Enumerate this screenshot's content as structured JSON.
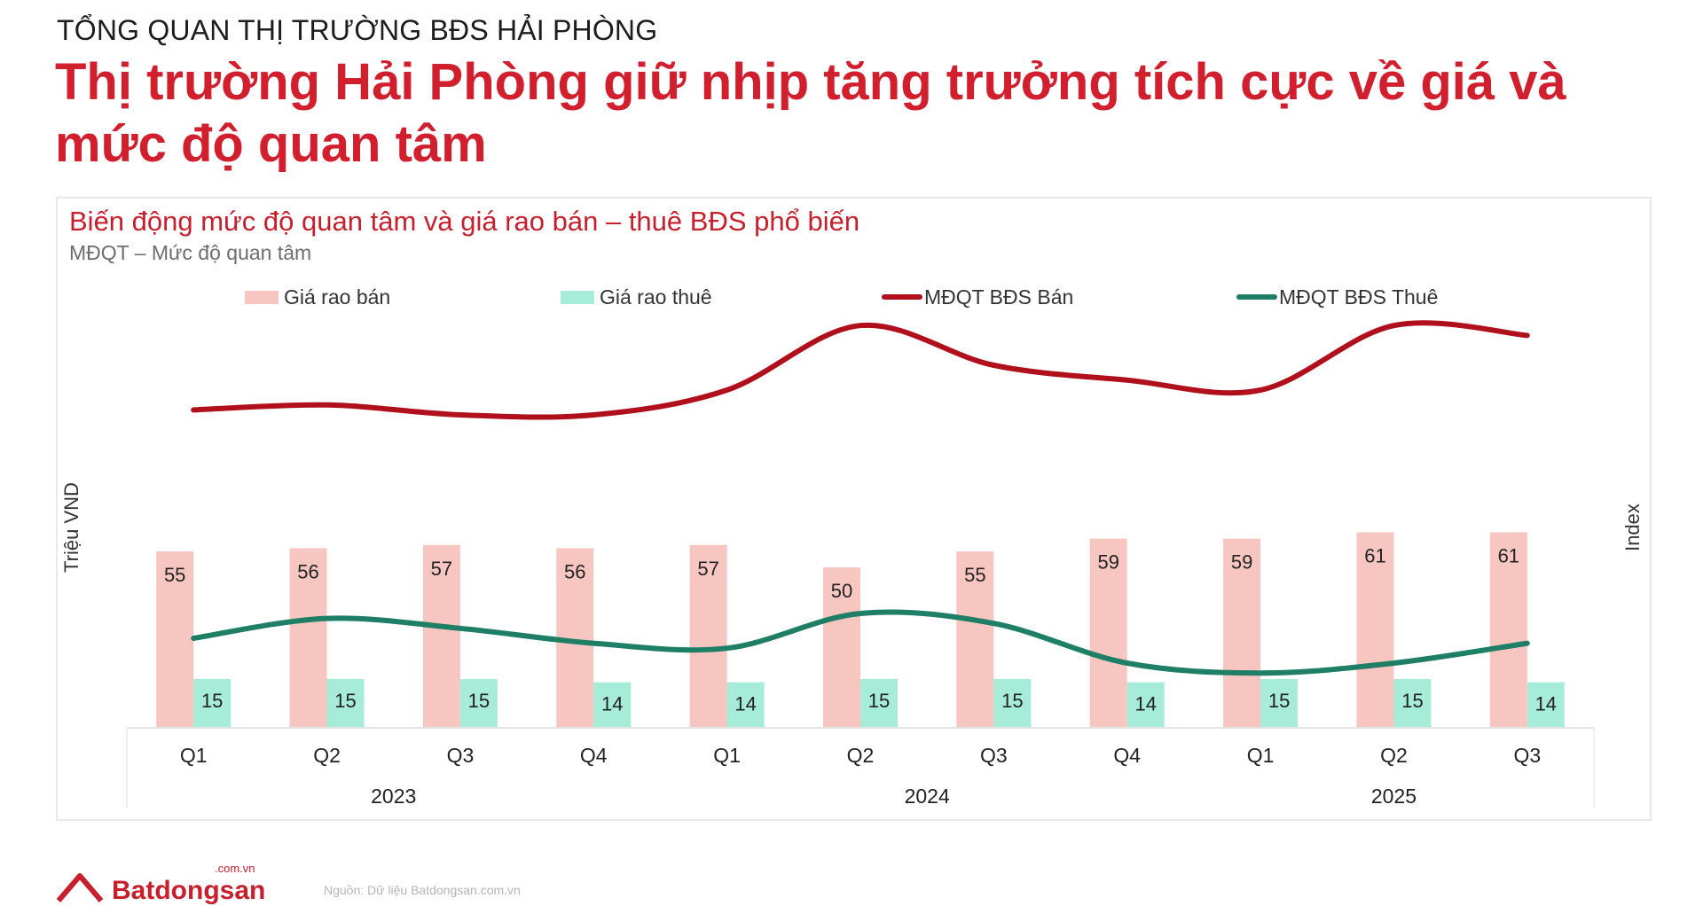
{
  "header": {
    "eyebrow": "TỔNG QUAN THỊ TRƯỜNG BĐS HẢI PHÒNG",
    "headline": "Thị trường Hải Phòng giữ nhịp tăng trưởng tích cực về giá và mức độ quan tâm"
  },
  "footer": {
    "brand": "Batdongsan",
    "domain": ".com.vn",
    "source": "Nguồn: Dữ liệu Batdongsan.com.vn"
  },
  "colors": {
    "sale_bar": "#f7c6c0",
    "rent_bar": "#a6ecd8",
    "sale_line": "#b0101c",
    "rent_line": "#1f7f66"
  },
  "chart_data": {
    "type": "bar",
    "title": "Biến động mức độ quan tâm và giá rao bán – thuê BĐS phổ biến",
    "subtitle": "MĐQT – Mức độ quan tâm",
    "ylabel": "Triệu VND",
    "y2label": "Index",
    "categories": [
      "Q1",
      "Q2",
      "Q3",
      "Q4",
      "Q1",
      "Q2",
      "Q3",
      "Q4",
      "Q1",
      "Q2",
      "Q3"
    ],
    "years": [
      {
        "label": "2023",
        "quarters": 4
      },
      {
        "label": "2024",
        "quarters": 4
      },
      {
        "label": "2025",
        "quarters": 3
      }
    ],
    "ylim": [
      0,
      80
    ],
    "y2lim": [
      0,
      100
    ],
    "grid": false,
    "legend_position": "top",
    "series": [
      {
        "name": "Giá rao bán",
        "type": "bar",
        "axis": "left",
        "values": [
          55,
          56,
          57,
          56,
          57,
          50,
          55,
          59,
          59,
          61,
          61
        ]
      },
      {
        "name": "Giá rao thuê",
        "type": "bar",
        "axis": "left",
        "values": [
          15,
          15,
          15,
          14,
          14,
          15,
          15,
          14,
          15,
          15,
          14
        ]
      },
      {
        "name": "MĐQT BĐS Bán",
        "type": "line",
        "axis": "right",
        "values": [
          71,
          72,
          70,
          70,
          75,
          88,
          80,
          77,
          75,
          88,
          86
        ]
      },
      {
        "name": "MĐQT BĐS Thuê",
        "type": "line",
        "axis": "right",
        "values": [
          25,
          29,
          27,
          24,
          23,
          30,
          28,
          20,
          18,
          20,
          24
        ]
      }
    ]
  }
}
